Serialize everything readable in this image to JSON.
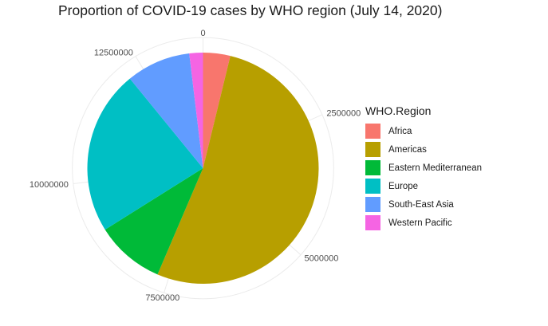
{
  "chart_data": {
    "type": "pie",
    "title": "Proportion of COVID-19 cases by WHO region (July 14, 2020)",
    "legend_title": "WHO.Region",
    "legend_position": "right",
    "categories": [
      "Africa",
      "Americas",
      "Eastern Mediterranean",
      "Europe",
      "South-East Asia",
      "Western Pacific"
    ],
    "values": [
      520000,
      7200000,
      1320000,
      3150000,
      1230000,
      260000
    ],
    "colors": [
      "#F8766D",
      "#B79F00",
      "#00BA38",
      "#00BFC4",
      "#619CFF",
      "#F564E3"
    ],
    "axis_ticks": [
      "0",
      "2500000",
      "5000000",
      "7500000",
      "10000000",
      "12500000"
    ],
    "axis_tick_values": [
      0,
      2500000,
      5000000,
      7500000,
      10000000,
      12500000
    ],
    "grid": true
  }
}
